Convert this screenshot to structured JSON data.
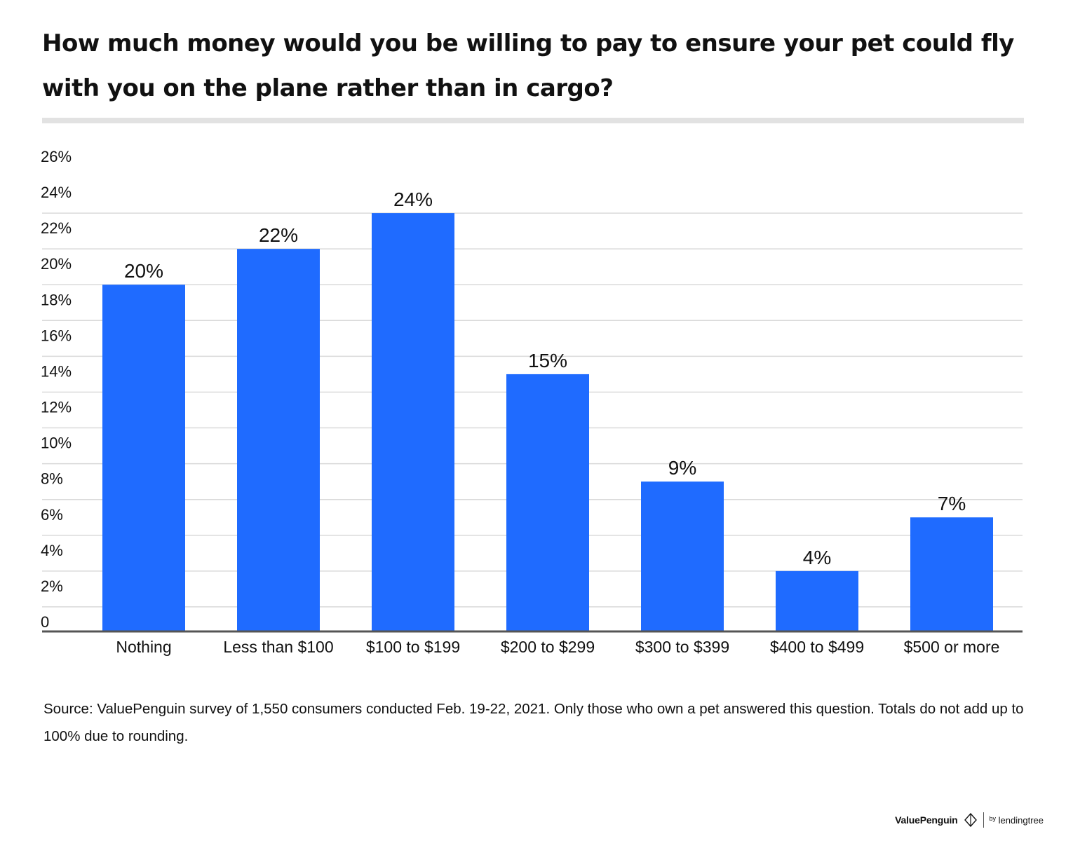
{
  "title": "How much money would you be willing to pay to ensure your pet could fly with you on the plane rather than in cargo?",
  "source": "Source: ValuePenguin survey of 1,550 consumers conducted Feb. 19-22, 2021. Only those who own a pet answered this question. Totals do not add up to 100% due to rounding.",
  "brand": {
    "name": "ValuePenguin",
    "partner": "lendingtree",
    "partner_prefix": "by"
  },
  "colors": {
    "bar": "#1f6bff",
    "grid": "#d9d9d9",
    "axis": "#555555",
    "title_rule": "#e2e2e2"
  },
  "chart_data": {
    "type": "bar",
    "categories": [
      "Nothing",
      "Less than $100",
      "$100 to $199",
      "$200 to $299",
      "$300 to $399",
      "$400 to $499",
      "$500 or more"
    ],
    "values": [
      20,
      22,
      24,
      15,
      9,
      4,
      7
    ],
    "data_labels": [
      "20%",
      "22%",
      "24%",
      "15%",
      "9%",
      "4%",
      "7%"
    ],
    "ylim": [
      0,
      26
    ],
    "yticks": [
      0,
      2,
      4,
      6,
      8,
      10,
      12,
      14,
      16,
      18,
      20,
      22,
      24,
      26
    ],
    "ytick_labels": [
      "0",
      "2%",
      "4%",
      "6%",
      "8%",
      "10%",
      "12%",
      "14%",
      "16%",
      "18%",
      "20%",
      "22%",
      "24%",
      "26%"
    ],
    "grid": true,
    "legend": "none",
    "xlabel": "",
    "ylabel": ""
  }
}
